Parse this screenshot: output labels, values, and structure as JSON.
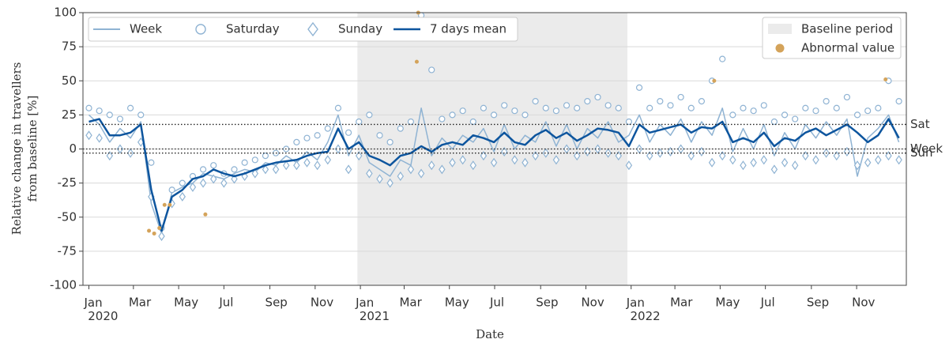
{
  "chart_data": {
    "type": "line",
    "xlabel": "Date",
    "ylabel": [
      "Relative change in travellers",
      "from baseline [%]"
    ],
    "xlim": [
      "2019-12-24",
      "2023-01-07"
    ],
    "ylim": [
      -100,
      100
    ],
    "yticks": [
      -100,
      -75,
      -50,
      -25,
      0,
      25,
      50,
      75,
      100
    ],
    "xticks": [
      {
        "value": "2020-01-01",
        "label": "Jan 2020"
      },
      {
        "value": "2020-03-01",
        "label": "Mar"
      },
      {
        "value": "2020-05-01",
        "label": "May"
      },
      {
        "value": "2020-07-01",
        "label": "Jul"
      },
      {
        "value": "2020-09-01",
        "label": "Sep"
      },
      {
        "value": "2020-11-01",
        "label": "Nov"
      },
      {
        "value": "2021-01-01",
        "label": "Jan 2021"
      },
      {
        "value": "2021-03-01",
        "label": "Mar"
      },
      {
        "value": "2021-05-01",
        "label": "May"
      },
      {
        "value": "2021-07-01",
        "label": "Jul"
      },
      {
        "value": "2021-09-01",
        "label": "Sep"
      },
      {
        "value": "2021-11-01",
        "label": "Nov"
      },
      {
        "value": "2022-01-01",
        "label": "Jan 2022"
      },
      {
        "value": "2022-03-01",
        "label": "Mar"
      },
      {
        "value": "2022-05-01",
        "label": "May"
      },
      {
        "value": "2022-07-01",
        "label": "Jul"
      },
      {
        "value": "2022-09-01",
        "label": "Sep"
      },
      {
        "value": "2022-11-01",
        "label": "Nov"
      }
    ],
    "grid": true,
    "baseline": {
      "label": "Baseline period",
      "range": [
        "2020-12-28",
        "2021-12-27"
      ],
      "color": "#ebebeb"
    },
    "reference_lines": [
      {
        "label": "Sat",
        "value": 18
      },
      {
        "label": "Week",
        "value": 0
      },
      {
        "label": "Sun",
        "value": -3
      }
    ],
    "x": [
      "2020-01-01",
      "2020-01-15",
      "2020-01-29",
      "2020-02-12",
      "2020-02-26",
      "2020-03-11",
      "2020-03-25",
      "2020-04-08",
      "2020-04-22",
      "2020-05-06",
      "2020-05-20",
      "2020-06-03",
      "2020-06-17",
      "2020-07-01",
      "2020-07-15",
      "2020-07-29",
      "2020-08-12",
      "2020-08-26",
      "2020-09-09",
      "2020-09-23",
      "2020-10-07",
      "2020-10-21",
      "2020-11-04",
      "2020-11-18",
      "2020-12-02",
      "2020-12-16",
      "2020-12-30",
      "2021-01-13",
      "2021-01-27",
      "2021-02-10",
      "2021-02-24",
      "2021-03-10",
      "2021-03-24",
      "2021-04-07",
      "2021-04-21",
      "2021-05-05",
      "2021-05-19",
      "2021-06-02",
      "2021-06-16",
      "2021-06-30",
      "2021-07-14",
      "2021-07-28",
      "2021-08-11",
      "2021-08-25",
      "2021-09-08",
      "2021-09-22",
      "2021-10-06",
      "2021-10-20",
      "2021-11-03",
      "2021-11-17",
      "2021-12-01",
      "2021-12-15",
      "2021-12-29",
      "2022-01-12",
      "2022-01-26",
      "2022-02-09",
      "2022-02-23",
      "2022-03-09",
      "2022-03-23",
      "2022-04-06",
      "2022-04-20",
      "2022-05-04",
      "2022-05-18",
      "2022-06-01",
      "2022-06-15",
      "2022-06-29",
      "2022-07-13",
      "2022-07-27",
      "2022-08-10",
      "2022-08-24",
      "2022-09-07",
      "2022-09-21",
      "2022-10-05",
      "2022-10-19",
      "2022-11-02",
      "2022-11-16",
      "2022-11-30",
      "2022-12-14",
      "2022-12-28"
    ],
    "series": [
      {
        "name": "Week",
        "color": "#8fb3d3",
        "line": true,
        "legend": "upper left",
        "values": [
          25,
          18,
          5,
          15,
          8,
          20,
          -40,
          -62,
          -32,
          -28,
          -25,
          -18,
          -20,
          -22,
          -18,
          -15,
          -17,
          -10,
          -12,
          -5,
          -10,
          -2,
          -8,
          5,
          25,
          -5,
          10,
          -10,
          -15,
          -20,
          -8,
          -12,
          30,
          -5,
          8,
          0,
          10,
          5,
          15,
          -2,
          18,
          0,
          10,
          5,
          20,
          2,
          18,
          0,
          15,
          8,
          20,
          5,
          10,
          25,
          5,
          18,
          10,
          22,
          5,
          20,
          10,
          30,
          -2,
          15,
          0,
          18,
          -5,
          12,
          0,
          18,
          8,
          20,
          10,
          22,
          -20,
          8,
          15,
          25,
          5
        ]
      },
      {
        "name": "Saturday",
        "color": "#8fb3d3",
        "marker": "circle",
        "legend": "upper left",
        "values": [
          30,
          28,
          25,
          22,
          30,
          25,
          -10,
          -58,
          -30,
          -25,
          -20,
          -15,
          -12,
          -18,
          -15,
          -10,
          -8,
          -5,
          -3,
          0,
          5,
          8,
          10,
          15,
          30,
          12,
          20,
          25,
          10,
          5,
          15,
          20,
          98,
          58,
          22,
          25,
          28,
          20,
          30,
          25,
          32,
          28,
          25,
          35,
          30,
          28,
          32,
          30,
          35,
          38,
          32,
          30,
          20,
          45,
          30,
          35,
          32,
          38,
          30,
          35,
          50,
          66,
          25,
          30,
          28,
          32,
          20,
          25,
          22,
          30,
          28,
          35,
          30,
          38,
          25,
          28,
          30,
          50,
          35
        ]
      },
      {
        "name": "Sunday",
        "color": "#8fb3d3",
        "marker": "diamond",
        "legend": "upper left",
        "values": [
          10,
          8,
          -5,
          0,
          -3,
          5,
          -35,
          -64,
          -40,
          -35,
          -28,
          -25,
          -22,
          -25,
          -22,
          -20,
          -18,
          -15,
          -15,
          -12,
          -12,
          -10,
          -12,
          -8,
          0,
          -15,
          -5,
          -18,
          -22,
          -25,
          -20,
          -15,
          -18,
          -12,
          -15,
          -10,
          -8,
          -12,
          -5,
          -10,
          -2,
          -8,
          -10,
          -5,
          -3,
          -8,
          0,
          -5,
          -2,
          0,
          -3,
          -5,
          -12,
          0,
          -5,
          -3,
          -2,
          0,
          -5,
          -2,
          -10,
          -5,
          -8,
          -12,
          -10,
          -8,
          -15,
          -10,
          -12,
          -5,
          -8,
          -3,
          -5,
          -2,
          -12,
          -10,
          -8,
          -5,
          -8
        ]
      },
      {
        "name": "7 days mean",
        "color": "#0d559e",
        "line": true,
        "width": 2.5,
        "legend": "upper left",
        "values": [
          20,
          22,
          10,
          10,
          12,
          18,
          -30,
          -60,
          -35,
          -30,
          -22,
          -20,
          -15,
          -18,
          -20,
          -18,
          -15,
          -12,
          -10,
          -9,
          -8,
          -5,
          -3,
          -2,
          15,
          0,
          5,
          -5,
          -8,
          -12,
          -5,
          -3,
          2,
          -2,
          3,
          5,
          3,
          10,
          8,
          5,
          12,
          5,
          3,
          10,
          14,
          8,
          12,
          6,
          10,
          15,
          14,
          12,
          2,
          18,
          12,
          14,
          16,
          18,
          12,
          16,
          15,
          20,
          5,
          8,
          5,
          12,
          2,
          8,
          6,
          12,
          15,
          10,
          14,
          18,
          12,
          5,
          10,
          22,
          8
        ]
      },
      {
        "name": "Abnormal value",
        "color": "#d4a35a",
        "marker": "dot",
        "legend": "upper right",
        "x": [
          "2020-03-22",
          "2020-03-29",
          "2020-04-05",
          "2020-04-12",
          "2020-04-19",
          "2020-06-06",
          "2021-03-18",
          "2021-03-20",
          "2022-04-23",
          "2022-12-10"
        ],
        "values": [
          -60,
          -62,
          -58,
          -41,
          -41,
          -48,
          64,
          100,
          50,
          51
        ]
      }
    ]
  }
}
